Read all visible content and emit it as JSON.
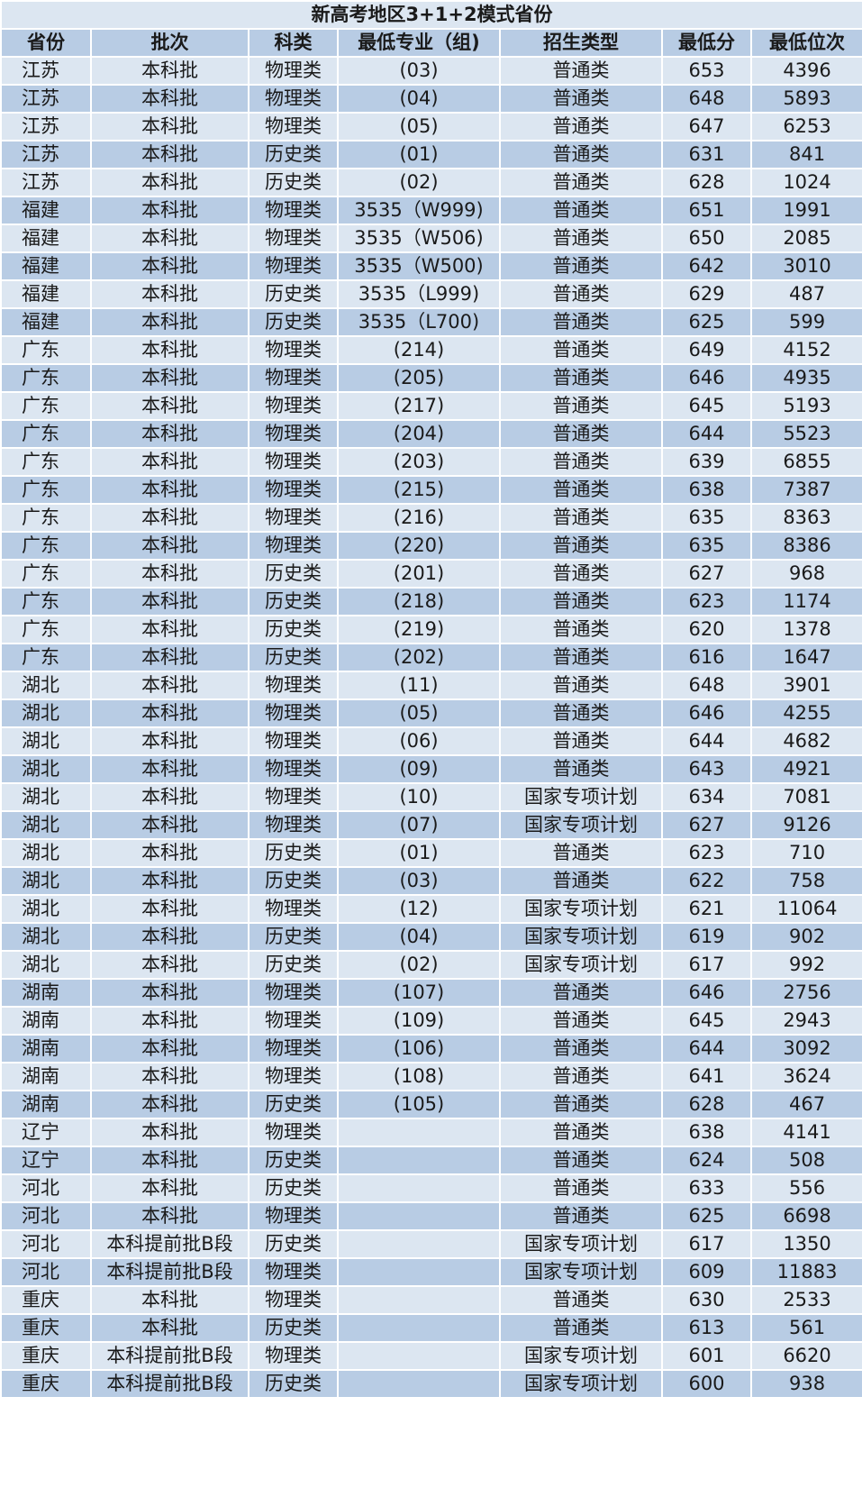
{
  "title": "新高考地区3+1+2模式省份",
  "headers": [
    "省份",
    "批次",
    "科类",
    "最低专业（组)",
    "招生类型",
    "最低分",
    "最低位次"
  ],
  "rows": [
    [
      "江苏",
      "本科批",
      "物理类",
      "(03)",
      "普通类",
      "653",
      "4396"
    ],
    [
      "江苏",
      "本科批",
      "物理类",
      "(04)",
      "普通类",
      "648",
      "5893"
    ],
    [
      "江苏",
      "本科批",
      "物理类",
      "(05)",
      "普通类",
      "647",
      "6253"
    ],
    [
      "江苏",
      "本科批",
      "历史类",
      "(01)",
      "普通类",
      "631",
      "841"
    ],
    [
      "江苏",
      "本科批",
      "历史类",
      "(02)",
      "普通类",
      "628",
      "1024"
    ],
    [
      "福建",
      "本科批",
      "物理类",
      "3535（W999)",
      "普通类",
      "651",
      "1991"
    ],
    [
      "福建",
      "本科批",
      "物理类",
      "3535（W506)",
      "普通类",
      "650",
      "2085"
    ],
    [
      "福建",
      "本科批",
      "物理类",
      "3535（W500)",
      "普通类",
      "642",
      "3010"
    ],
    [
      "福建",
      "本科批",
      "历史类",
      "3535（L999)",
      "普通类",
      "629",
      "487"
    ],
    [
      "福建",
      "本科批",
      "历史类",
      "3535（L700)",
      "普通类",
      "625",
      "599"
    ],
    [
      "广东",
      "本科批",
      "物理类",
      "(214)",
      "普通类",
      "649",
      "4152"
    ],
    [
      "广东",
      "本科批",
      "物理类",
      "(205)",
      "普通类",
      "646",
      "4935"
    ],
    [
      "广东",
      "本科批",
      "物理类",
      "(217)",
      "普通类",
      "645",
      "5193"
    ],
    [
      "广东",
      "本科批",
      "物理类",
      "(204)",
      "普通类",
      "644",
      "5523"
    ],
    [
      "广东",
      "本科批",
      "物理类",
      "(203)",
      "普通类",
      "639",
      "6855"
    ],
    [
      "广东",
      "本科批",
      "物理类",
      "(215)",
      "普通类",
      "638",
      "7387"
    ],
    [
      "广东",
      "本科批",
      "物理类",
      "(216)",
      "普通类",
      "635",
      "8363"
    ],
    [
      "广东",
      "本科批",
      "物理类",
      "(220)",
      "普通类",
      "635",
      "8386"
    ],
    [
      "广东",
      "本科批",
      "历史类",
      "(201)",
      "普通类",
      "627",
      "968"
    ],
    [
      "广东",
      "本科批",
      "历史类",
      "(218)",
      "普通类",
      "623",
      "1174"
    ],
    [
      "广东",
      "本科批",
      "历史类",
      "(219)",
      "普通类",
      "620",
      "1378"
    ],
    [
      "广东",
      "本科批",
      "历史类",
      "(202)",
      "普通类",
      "616",
      "1647"
    ],
    [
      "湖北",
      "本科批",
      "物理类",
      "(11)",
      "普通类",
      "648",
      "3901"
    ],
    [
      "湖北",
      "本科批",
      "物理类",
      "(05)",
      "普通类",
      "646",
      "4255"
    ],
    [
      "湖北",
      "本科批",
      "物理类",
      "(06)",
      "普通类",
      "644",
      "4682"
    ],
    [
      "湖北",
      "本科批",
      "物理类",
      "(09)",
      "普通类",
      "643",
      "4921"
    ],
    [
      "湖北",
      "本科批",
      "物理类",
      "(10)",
      "国家专项计划",
      "634",
      "7081"
    ],
    [
      "湖北",
      "本科批",
      "物理类",
      "(07)",
      "国家专项计划",
      "627",
      "9126"
    ],
    [
      "湖北",
      "本科批",
      "历史类",
      "(01)",
      "普通类",
      "623",
      "710"
    ],
    [
      "湖北",
      "本科批",
      "历史类",
      "(03)",
      "普通类",
      "622",
      "758"
    ],
    [
      "湖北",
      "本科批",
      "物理类",
      "(12)",
      "国家专项计划",
      "621",
      "11064"
    ],
    [
      "湖北",
      "本科批",
      "历史类",
      "(04)",
      "国家专项计划",
      "619",
      "902"
    ],
    [
      "湖北",
      "本科批",
      "历史类",
      "(02)",
      "国家专项计划",
      "617",
      "992"
    ],
    [
      "湖南",
      "本科批",
      "物理类",
      "(107)",
      "普通类",
      "646",
      "2756"
    ],
    [
      "湖南",
      "本科批",
      "物理类",
      "(109)",
      "普通类",
      "645",
      "2943"
    ],
    [
      "湖南",
      "本科批",
      "物理类",
      "(106)",
      "普通类",
      "644",
      "3092"
    ],
    [
      "湖南",
      "本科批",
      "物理类",
      "(108)",
      "普通类",
      "641",
      "3624"
    ],
    [
      "湖南",
      "本科批",
      "历史类",
      "(105)",
      "普通类",
      "628",
      "467"
    ],
    [
      "辽宁",
      "本科批",
      "物理类",
      "",
      "普通类",
      "638",
      "4141"
    ],
    [
      "辽宁",
      "本科批",
      "历史类",
      "",
      "普通类",
      "624",
      "508"
    ],
    [
      "河北",
      "本科批",
      "历史类",
      "",
      "普通类",
      "633",
      "556"
    ],
    [
      "河北",
      "本科批",
      "物理类",
      "",
      "普通类",
      "625",
      "6698"
    ],
    [
      "河北",
      "本科提前批B段",
      "历史类",
      "",
      "国家专项计划",
      "617",
      "1350"
    ],
    [
      "河北",
      "本科提前批B段",
      "物理类",
      "",
      "国家专项计划",
      "609",
      "11883"
    ],
    [
      "重庆",
      "本科批",
      "物理类",
      "",
      "普通类",
      "630",
      "2533"
    ],
    [
      "重庆",
      "本科批",
      "历史类",
      "",
      "普通类",
      "613",
      "561"
    ],
    [
      "重庆",
      "本科提前批B段",
      "物理类",
      "",
      "国家专项计划",
      "601",
      "6620"
    ],
    [
      "重庆",
      "本科提前批B段",
      "历史类",
      "",
      "国家专项计划",
      "600",
      "938"
    ]
  ]
}
